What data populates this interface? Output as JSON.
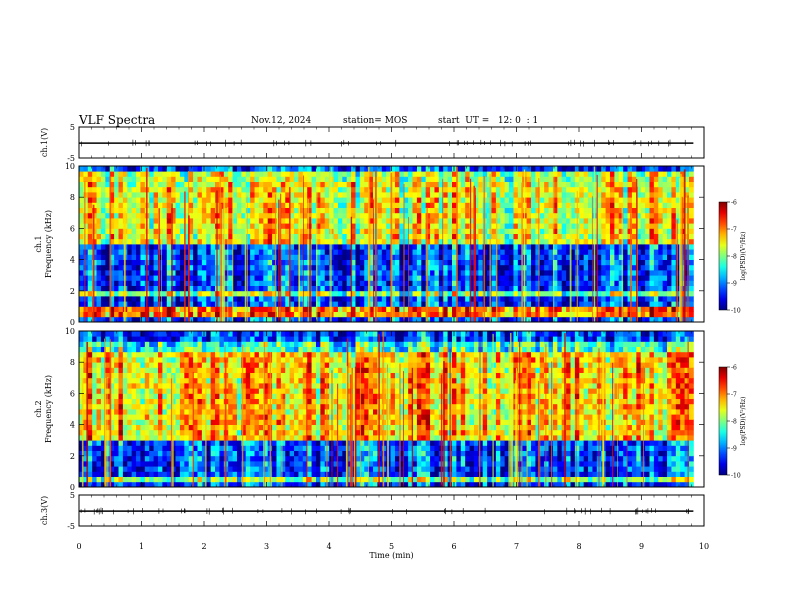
{
  "header": {
    "title": "VLF Spectra",
    "date": "Nov.12, 2024",
    "station": "station= MOS",
    "start": "start  UT =   12: 0  : 1"
  },
  "chart_data": {
    "type": "heatmap",
    "x_label": "Time  (min)",
    "x_range": [
      0,
      10
    ],
    "x_ticks": [
      "0",
      "1",
      "2",
      "3",
      "4",
      "5",
      "6",
      "7",
      "8",
      "9",
      "10"
    ],
    "data_end_min": 9.83,
    "panels": [
      {
        "kind": "waveform",
        "label": "ch.1(V)",
        "y_range": [
          -5,
          5
        ],
        "y_ticks": [
          "5",
          "-5"
        ],
        "level": -0.2
      },
      {
        "kind": "spectrogram",
        "label": "ch.1\nFrequency (kHz)",
        "y_range": [
          0,
          10
        ],
        "y_ticks": [
          "0",
          "2",
          "4",
          "6",
          "8",
          "10"
        ],
        "colorbar": {
          "label": "log(PSD)(V²/Hz)",
          "range": [
            -10,
            -6
          ],
          "ticks": [
            "-6",
            "-7",
            "-8",
            "-9",
            "-10"
          ]
        },
        "bands": [
          [
            0.4,
            0.9,
            0.7
          ],
          [
            1.6,
            2.0,
            0.45
          ],
          [
            5.0,
            9.0,
            0.55
          ],
          [
            9.0,
            9.6,
            0.5
          ]
        ]
      },
      {
        "kind": "spectrogram",
        "label": "ch.2\nFrequency (kHz)",
        "y_range": [
          0,
          10
        ],
        "y_ticks": [
          "0",
          "2",
          "4",
          "6",
          "8",
          "10"
        ],
        "colorbar": {
          "label": "log(PSD)(V²/Hz)",
          "range": [
            -10,
            -6
          ],
          "ticks": [
            "-6",
            "-7",
            "-8",
            "-9",
            "-10"
          ]
        },
        "bands": [
          [
            0.3,
            0.8,
            0.45
          ],
          [
            3.0,
            8.8,
            0.6
          ],
          [
            8.8,
            9.4,
            0.35
          ]
        ]
      },
      {
        "kind": "waveform",
        "label": "ch.3(V)",
        "y_range": [
          -5,
          5
        ],
        "y_ticks": [
          "5",
          "-5"
        ],
        "level": -0.2
      }
    ]
  }
}
